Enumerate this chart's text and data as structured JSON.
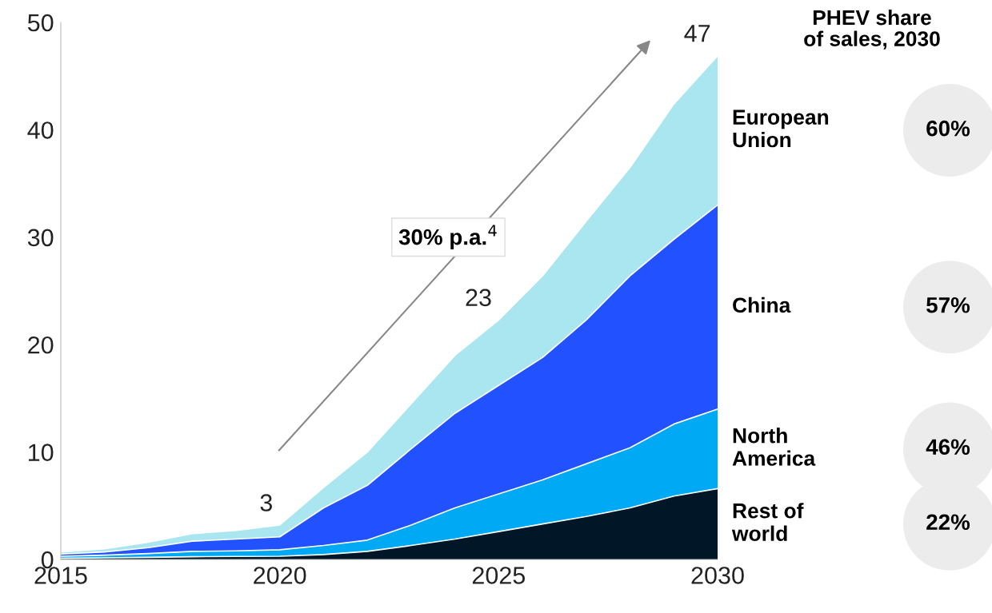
{
  "chart_data": {
    "type": "area",
    "stacked": true,
    "title": "PHEV share\nof sales, 2030",
    "x": [
      2015,
      2016,
      2017,
      2018,
      2019,
      2020,
      2021,
      2022,
      2023,
      2024,
      2025,
      2026,
      2027,
      2028,
      2029,
      2030
    ],
    "xlim": [
      2015,
      2030
    ],
    "xticks": [
      2015,
      2020,
      2025,
      2030
    ],
    "ylim": [
      0,
      50
    ],
    "yticks": [
      0,
      10,
      20,
      30,
      40,
      50
    ],
    "series": [
      {
        "name": "Rest of\nworld",
        "color": "#011627",
        "values": [
          0.1,
          0.15,
          0.2,
          0.25,
          0.28,
          0.3,
          0.45,
          0.75,
          1.3,
          1.9,
          2.6,
          3.3,
          4.0,
          4.8,
          5.9,
          6.6
        ]
      },
      {
        "name": "North\nAmerica",
        "color": "#00a9f4",
        "values": [
          0.2,
          0.25,
          0.35,
          0.5,
          0.52,
          0.6,
          0.85,
          1.05,
          1.9,
          2.9,
          3.5,
          4.1,
          4.9,
          5.6,
          6.7,
          7.4
        ]
      },
      {
        "name": "China",
        "color": "#2251ff",
        "values": [
          0.2,
          0.3,
          0.55,
          0.95,
          1.1,
          1.2,
          3.5,
          5.1,
          7.1,
          8.8,
          10.1,
          11.4,
          13.4,
          16.0,
          17.2,
          19.0
        ]
      },
      {
        "name": "European\nUnion",
        "color": "#aae6f0",
        "values": [
          0.2,
          0.3,
          0.5,
          0.7,
          0.8,
          1.1,
          1.9,
          3.1,
          4.2,
          5.4,
          6.1,
          7.6,
          9.2,
          10.1,
          12.6,
          13.9
        ]
      }
    ],
    "annotations": [
      {
        "text": "3",
        "x": 2020,
        "y": 3.2
      },
      {
        "text": "23",
        "x": 2025,
        "y": 22.3
      },
      {
        "text": "47",
        "x": 2030,
        "y": 46.9
      },
      "30% p.a.$^{4}$",
      "22%",
      "46%",
      "57%",
      "60%"
    ],
    "grid": false,
    "legend": false
  }
}
